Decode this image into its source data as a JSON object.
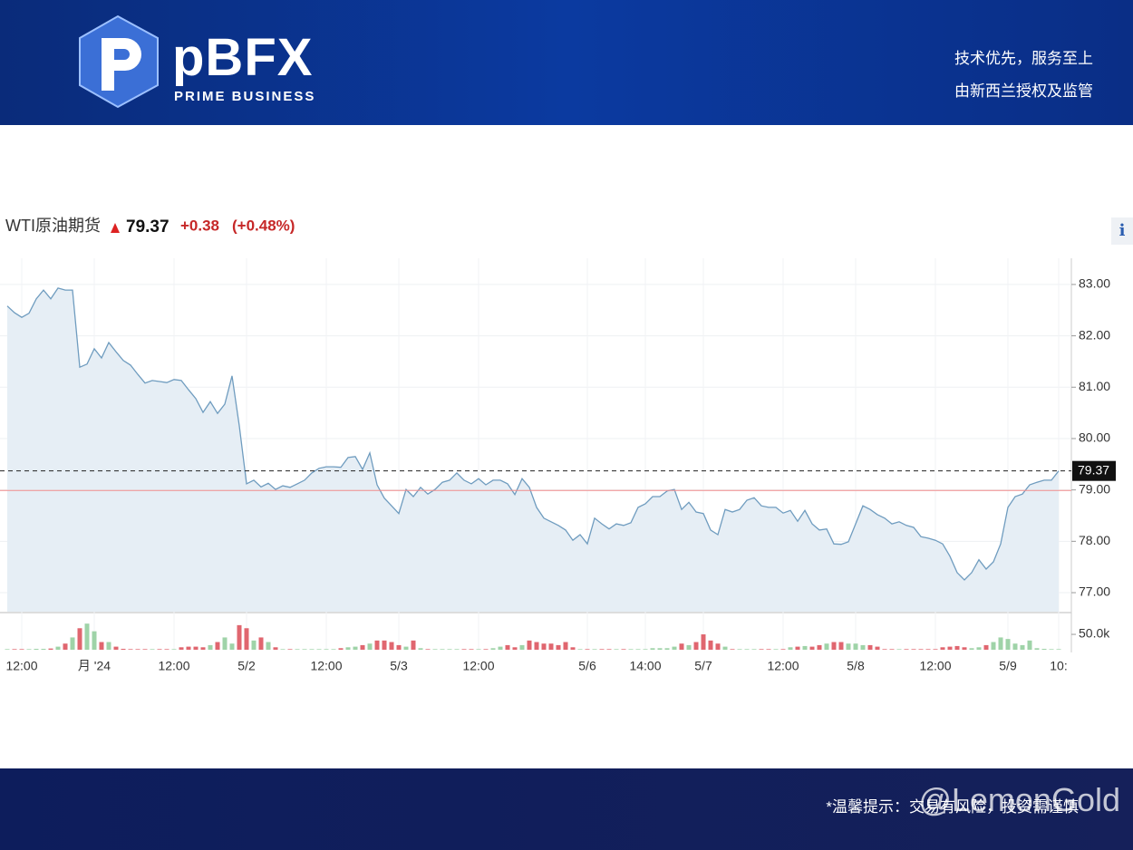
{
  "header": {
    "brand": "pBFX",
    "tagline": "PRIME BUSINESS",
    "slogans": [
      "技术优先，服务至上",
      "由新西兰授权及监管"
    ]
  },
  "footer": {
    "notice": "*温馨提示：交易有风险，投资需谨慎",
    "watermark": "@LemonGold"
  },
  "info_icon": "i",
  "chart_data": {
    "type": "line",
    "title": "WTI原油期货",
    "price": 79.37,
    "change": "+0.38",
    "change_percent": "(+0.48%)",
    "color": "#6f9cbf",
    "area_color": "#e6eef5",
    "reference_line": 78.99,
    "reference_color": "#f08c8c",
    "grid": true,
    "categories": [
      null,
      null,
      "12:00",
      null,
      null,
      null,
      null,
      null,
      null,
      null,
      null,
      null,
      "月 '24",
      null,
      null,
      null,
      null,
      null,
      null,
      null,
      null,
      null,
      null,
      "12:00",
      null,
      null,
      null,
      null,
      null,
      null,
      null,
      null,
      null,
      "5/2",
      null,
      null,
      null,
      null,
      null,
      null,
      null,
      null,
      null,
      null,
      "12:00",
      null,
      null,
      null,
      null,
      null,
      null,
      null,
      null,
      null,
      "5/3",
      null,
      null,
      null,
      null,
      null,
      null,
      null,
      null,
      null,
      null,
      "12:00",
      null,
      null,
      null,
      null,
      null,
      null,
      null,
      null,
      null,
      null,
      null,
      null,
      null,
      null,
      "5/6",
      null,
      null,
      null,
      null,
      null,
      null,
      null,
      "14:00",
      null,
      null,
      null,
      null,
      null,
      null,
      null,
      "5/7",
      null,
      null,
      null,
      null,
      null,
      null,
      null,
      null,
      null,
      null,
      "12:00",
      null,
      null,
      null,
      null,
      null,
      null,
      null,
      null,
      null,
      "5/8",
      null,
      null,
      null,
      null,
      null,
      null,
      null,
      null,
      null,
      null,
      "12:00",
      null,
      null,
      null,
      null,
      null,
      null,
      null,
      null,
      null,
      "5/9",
      null,
      null,
      null,
      null,
      null,
      null,
      "10:"
    ],
    "values": [
      82.58,
      82.45,
      82.36,
      82.44,
      82.72,
      82.89,
      82.72,
      82.93,
      82.89,
      82.89,
      81.39,
      81.45,
      81.75,
      81.57,
      81.87,
      81.69,
      81.52,
      81.43,
      81.25,
      81.08,
      81.13,
      81.11,
      81.09,
      81.15,
      81.13,
      80.95,
      80.78,
      80.51,
      80.72,
      80.49,
      80.67,
      81.22,
      80.25,
      79.12,
      79.19,
      79.06,
      79.13,
      79.01,
      79.08,
      79.05,
      79.12,
      79.19,
      79.33,
      79.42,
      79.45,
      79.45,
      79.44,
      79.63,
      79.65,
      79.4,
      79.72,
      79.1,
      78.84,
      78.69,
      78.54,
      79.01,
      78.87,
      79.05,
      78.92,
      79.01,
      79.15,
      79.19,
      79.33,
      79.19,
      79.12,
      79.22,
      79.1,
      79.19,
      79.19,
      79.12,
      78.91,
      79.22,
      79.05,
      78.66,
      78.45,
      78.38,
      78.31,
      78.22,
      78.02,
      78.13,
      77.95,
      78.45,
      78.34,
      78.24,
      78.34,
      78.31,
      78.36,
      78.66,
      78.73,
      78.87,
      78.87,
      78.98,
      79.01,
      78.62,
      78.76,
      78.57,
      78.54,
      78.22,
      78.13,
      78.62,
      78.57,
      78.62,
      78.8,
      78.85,
      78.69,
      78.66,
      78.66,
      78.55,
      78.6,
      78.39,
      78.6,
      78.34,
      78.22,
      78.24,
      77.95,
      77.94,
      77.99,
      78.34,
      78.69,
      78.62,
      78.52,
      78.45,
      78.34,
      78.38,
      78.31,
      78.27,
      78.09,
      78.06,
      78.02,
      77.95,
      77.71,
      77.39,
      77.25,
      77.39,
      77.64,
      77.46,
      77.6,
      77.95,
      78.66,
      78.87,
      78.92,
      79.1,
      79.15,
      79.19,
      79.19,
      79.37
    ],
    "ylim": [
      76.63,
      83.51
    ],
    "yticks": [
      {
        "value": 77,
        "label": "77.00"
      },
      {
        "value": 78,
        "label": "78.00"
      },
      {
        "value": 79,
        "label": "79.00"
      },
      {
        "value": 80,
        "label": "80.00"
      },
      {
        "value": 81,
        "label": "81.00"
      },
      {
        "value": 82,
        "label": "82.00"
      },
      {
        "value": 83,
        "label": "83.00"
      }
    ],
    "volume": {
      "up_color": "#9fd3a8",
      "down_color": "#e0666f",
      "ylim": [
        0,
        115000
      ],
      "yticks": [
        {
          "value": 50000,
          "label": "50.0k"
        }
      ],
      "values": [
        2000,
        2000,
        2000,
        2000,
        3000,
        3000,
        4000,
        10000,
        20000,
        40000,
        70000,
        85000,
        60000,
        25000,
        25000,
        10000,
        3000,
        2000,
        2000,
        2000,
        2000,
        2000,
        2000,
        2000,
        8000,
        10000,
        10000,
        8000,
        15000,
        25000,
        40000,
        20000,
        80000,
        70000,
        30000,
        40000,
        25000,
        8000,
        2000,
        2000,
        2000,
        2000,
        2000,
        2000,
        2000,
        2000,
        5000,
        8000,
        10000,
        15000,
        20000,
        30000,
        30000,
        25000,
        15000,
        10000,
        30000,
        5000,
        2000,
        2000,
        2000,
        2000,
        2000,
        2000,
        2000,
        2000,
        2000,
        5000,
        10000,
        15000,
        8000,
        15000,
        30000,
        25000,
        20000,
        20000,
        15000,
        25000,
        8000,
        2000,
        2000,
        2000,
        2000,
        2000,
        2000,
        2000,
        2000,
        2000,
        2000,
        5000,
        5000,
        5000,
        10000,
        20000,
        15000,
        25000,
        50000,
        30000,
        20000,
        10000,
        2000,
        2000,
        2000,
        2000,
        2000,
        2000,
        2000,
        2000,
        8000,
        10000,
        12000,
        10000,
        15000,
        20000,
        25000,
        25000,
        20000,
        20000,
        15000,
        15000,
        10000,
        2000,
        2000,
        2000,
        2000,
        2000,
        2000,
        2000,
        2000,
        8000,
        10000,
        12000,
        8000,
        5000,
        8000,
        15000,
        25000,
        40000,
        35000,
        20000,
        15000,
        30000,
        5000,
        3000,
        2000,
        2000
      ]
    }
  }
}
